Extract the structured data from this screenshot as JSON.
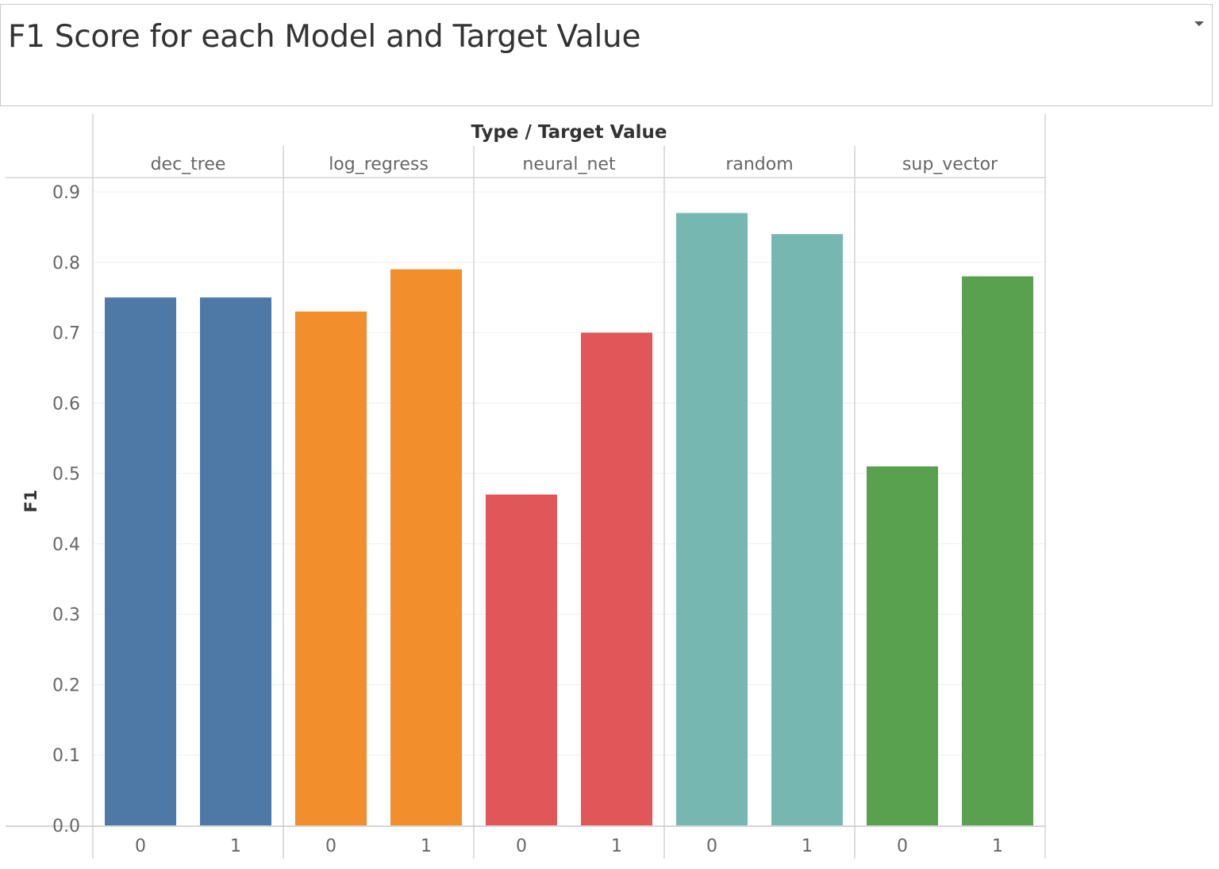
{
  "title": "F1 Score for each Model and Target Value",
  "icons": {
    "menu": "dropdown-caret-icon"
  },
  "colors": {
    "dec_tree": "#4e79a7",
    "log_regress": "#f28e2b",
    "neural_net": "#e15759",
    "random": "#76b7b2",
    "sup_vector": "#59a14f"
  },
  "chart_data": {
    "type": "bar",
    "header_label": "Type / Target Value",
    "ylabel": "F1",
    "ylim": [
      0,
      0.9
    ],
    "yticks": [
      "0.0",
      "0.1",
      "0.2",
      "0.3",
      "0.4",
      "0.5",
      "0.6",
      "0.7",
      "0.8",
      "0.9"
    ],
    "groups": [
      {
        "name": "dec_tree",
        "categories": [
          "0",
          "1"
        ],
        "values": [
          0.75,
          0.75
        ]
      },
      {
        "name": "log_regress",
        "categories": [
          "0",
          "1"
        ],
        "values": [
          0.73,
          0.79
        ]
      },
      {
        "name": "neural_net",
        "categories": [
          "0",
          "1"
        ],
        "values": [
          0.47,
          0.7
        ]
      },
      {
        "name": "random",
        "categories": [
          "0",
          "1"
        ],
        "values": [
          0.87,
          0.84
        ]
      },
      {
        "name": "sup_vector",
        "categories": [
          "0",
          "1"
        ],
        "values": [
          0.51,
          0.78
        ]
      }
    ],
    "grid": true,
    "legend": "none"
  }
}
